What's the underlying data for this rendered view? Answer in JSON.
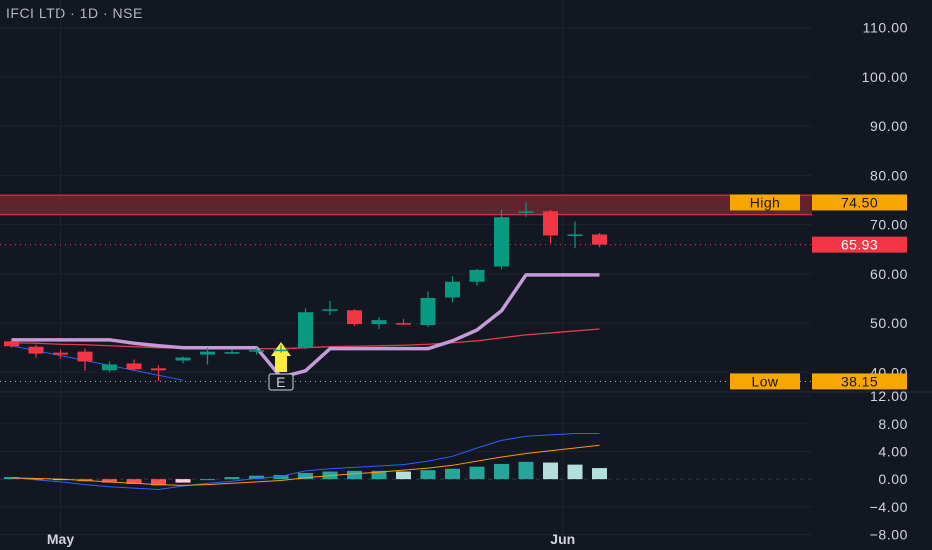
{
  "header": {
    "title": "IFCI LTD · 1D · NSE"
  },
  "colors": {
    "background": "#131722",
    "up": "#089981",
    "down": "#f23645",
    "envelope": "#c49bd8",
    "ema": "#e03d4a",
    "resistance_zone": "#7a2a33",
    "tag_orange": "#f7a600",
    "macd_line": "#2962ff",
    "signal_line": "#ff9800",
    "hist_up_strong": "#26a69a",
    "hist_up_weak": "#b2dfdb",
    "earnings_arrow": "#ffeb3b"
  },
  "chart_data": [
    {
      "type": "candlestick",
      "title": "IFCI LTD · 1D · NSE",
      "ylim": [
        36,
        114
      ],
      "y_ticks": [
        "110.00",
        "100.00",
        "90.00",
        "80.00",
        "70.00",
        "60.00",
        "50.00",
        "40.00"
      ],
      "x_labels": [
        {
          "label": "May",
          "index": 2
        },
        {
          "label": "Jun",
          "index": 22.5
        }
      ],
      "candles": [
        {
          "o": 46.3,
          "h": 46.8,
          "l": 45.0,
          "c": 45.3
        },
        {
          "o": 45.2,
          "h": 45.6,
          "l": 43.0,
          "c": 43.8
        },
        {
          "o": 44.0,
          "h": 44.6,
          "l": 42.8,
          "c": 43.6
        },
        {
          "o": 44.2,
          "h": 44.8,
          "l": 40.3,
          "c": 42.2
        },
        {
          "o": 40.4,
          "h": 42.2,
          "l": 40.0,
          "c": 41.6
        },
        {
          "o": 41.8,
          "h": 42.6,
          "l": 40.3,
          "c": 40.6
        },
        {
          "o": 40.8,
          "h": 41.4,
          "l": 38.2,
          "c": 40.4
        },
        {
          "o": 42.4,
          "h": 43.2,
          "l": 41.8,
          "c": 43.0
        },
        {
          "o": 43.6,
          "h": 45.0,
          "l": 41.6,
          "c": 44.2
        },
        {
          "o": 44.0,
          "h": 44.6,
          "l": 43.7,
          "c": 44.1
        },
        {
          "o": 44.3,
          "h": 45.0,
          "l": 43.6,
          "c": 44.5
        },
        {
          "o": 44.3,
          "h": 45.5,
          "l": 44.0,
          "c": 44.6
        },
        {
          "o": 45.0,
          "h": 53.0,
          "l": 44.7,
          "c": 52.2
        },
        {
          "o": 52.5,
          "h": 54.5,
          "l": 51.6,
          "c": 52.8
        },
        {
          "o": 52.6,
          "h": 52.8,
          "l": 49.4,
          "c": 49.8
        },
        {
          "o": 49.8,
          "h": 51.2,
          "l": 48.8,
          "c": 50.6
        },
        {
          "o": 50.0,
          "h": 50.8,
          "l": 49.6,
          "c": 49.9
        },
        {
          "o": 49.6,
          "h": 56.4,
          "l": 49.2,
          "c": 55.1
        },
        {
          "o": 55.2,
          "h": 59.5,
          "l": 54.2,
          "c": 58.4
        },
        {
          "o": 58.4,
          "h": 61.0,
          "l": 57.6,
          "c": 60.8
        },
        {
          "o": 61.5,
          "h": 73.0,
          "l": 60.9,
          "c": 71.5
        },
        {
          "o": 72.5,
          "h": 74.5,
          "l": 71.6,
          "c": 72.7
        },
        {
          "o": 72.7,
          "h": 73.0,
          "l": 66.2,
          "c": 67.8
        },
        {
          "o": 67.8,
          "h": 70.6,
          "l": 65.2,
          "c": 68.0
        },
        {
          "o": 68.0,
          "h": 68.3,
          "l": 65.4,
          "c": 65.93
        }
      ],
      "envelope_line": [
        46.6,
        46.6,
        46.6,
        46.6,
        46.6,
        45.9,
        45.4,
        45.0,
        45.0,
        45.0,
        45.0,
        39.0,
        40.3,
        44.8,
        44.8,
        44.8,
        44.8,
        44.8,
        46.4,
        48.6,
        52.5,
        59.8,
        59.8,
        59.8,
        59.8
      ],
      "ema_line": [
        46.0,
        45.9,
        45.7,
        45.6,
        45.4,
        45.2,
        45.0,
        44.9,
        44.8,
        44.8,
        44.8,
        44.8,
        45.0,
        45.2,
        45.3,
        45.4,
        45.5,
        45.7,
        46.0,
        46.4,
        47.0,
        47.6,
        48.0,
        48.4,
        48.8
      ],
      "thin_blue_line": [
        [
          0,
          45.4
        ],
        [
          7,
          38.4
        ]
      ],
      "earnings_marker": {
        "index": 11,
        "label": "E"
      },
      "resistance_zone": {
        "from": 72.0,
        "to": 76.0
      },
      "high_tag": {
        "label": "High",
        "value": "74.50"
      },
      "low_tag": {
        "label": "Low",
        "value": "38.15"
      },
      "last_price": {
        "value": "65.93",
        "price": 65.93
      },
      "low_price": 38.15
    },
    {
      "type": "macd",
      "ylim": [
        -8.8,
        12.6
      ],
      "y_ticks": [
        "12.00",
        "8.00",
        "4.00",
        "0.00",
        "−4.00",
        "−8.00"
      ],
      "histogram": [
        0.3,
        0.1,
        0.0,
        -0.3,
        -0.5,
        -0.7,
        -0.9,
        -0.5,
        0.0,
        0.3,
        0.5,
        0.6,
        0.9,
        1.1,
        1.2,
        1.2,
        1.1,
        1.3,
        1.5,
        1.8,
        2.2,
        2.5,
        2.4,
        2.1,
        1.6
      ],
      "macd_line": [
        0.2,
        -0.1,
        -0.4,
        -0.8,
        -1.1,
        -1.3,
        -1.5,
        -1.0,
        -0.6,
        -0.3,
        0.1,
        0.4,
        1.2,
        1.5,
        1.7,
        1.9,
        2.1,
        2.6,
        3.3,
        4.5,
        5.6,
        6.2,
        6.4,
        6.6,
        6.6
      ],
      "signal_line": [
        0.2,
        0.1,
        0.0,
        -0.2,
        -0.4,
        -0.6,
        -0.8,
        -0.9,
        -0.8,
        -0.6,
        -0.4,
        -0.2,
        0.2,
        0.5,
        0.8,
        1.0,
        1.3,
        1.6,
        2.0,
        2.6,
        3.2,
        3.7,
        4.1,
        4.5,
        4.9
      ]
    }
  ]
}
